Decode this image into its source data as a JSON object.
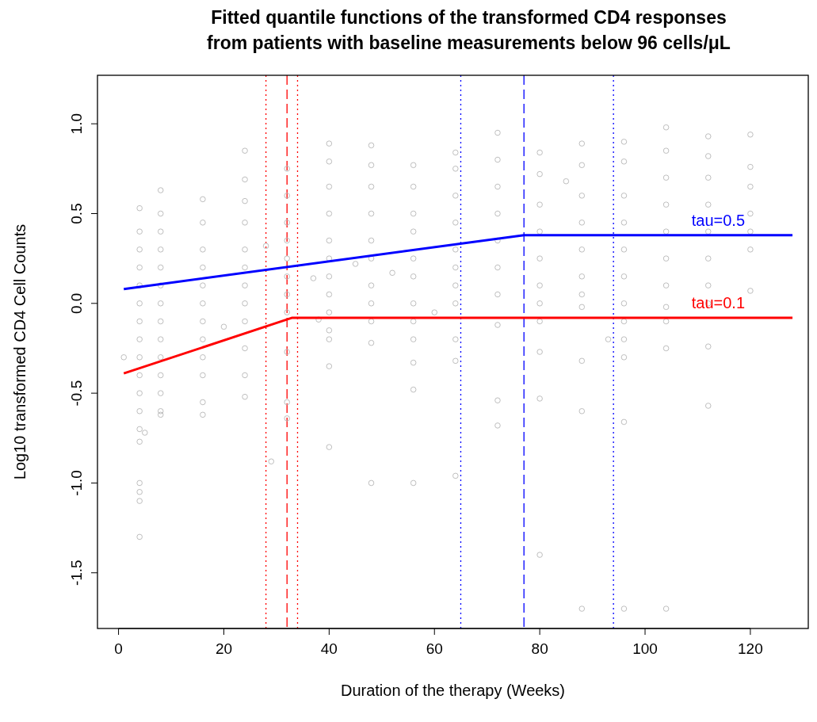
{
  "chart_data": {
    "type": "scatter",
    "title": "Fitted quantile functions of the transformed CD4 responses\nfrom patients with baseline measurements below 96 cells/μL",
    "xlabel": "Duration of the therapy (Weeks)",
    "ylabel": "Log10 transformed CD4 Cell Counts",
    "xlim": [
      -4,
      131
    ],
    "ylim": [
      -1.81,
      1.27
    ],
    "xticks": [
      0,
      20,
      40,
      60,
      80,
      100,
      120
    ],
    "yticks": [
      {
        "value": -1.5,
        "label": "-1.5"
      },
      {
        "value": -1,
        "label": "-1.0"
      },
      {
        "value": -0.5,
        "label": "-0.5"
      },
      {
        "value": 0,
        "label": "0.0"
      },
      {
        "value": 0.5,
        "label": "0.5"
      },
      {
        "value": 1,
        "label": "1.0"
      }
    ],
    "grid": false,
    "series": [
      {
        "marker": "circle",
        "color": "#bebebe",
        "x": [
          1,
          4,
          4,
          4,
          4,
          4,
          4,
          4,
          4,
          4,
          4,
          4,
          4,
          4,
          4,
          4,
          4,
          4,
          4,
          5,
          8,
          8,
          8,
          8,
          8,
          8,
          8,
          8,
          8,
          8,
          8,
          8,
          8,
          8,
          16,
          16,
          16,
          16,
          16,
          16,
          16,
          16,
          16,
          16,
          16,
          16,
          20,
          24,
          24,
          24,
          24,
          24,
          24,
          24,
          24,
          24,
          24,
          24,
          24,
          28,
          29,
          32,
          32,
          32,
          32,
          32,
          32,
          32,
          32,
          32,
          32,
          32,
          37,
          38,
          40,
          40,
          40,
          40,
          40,
          40,
          40,
          40,
          40,
          40,
          40,
          40,
          40,
          45,
          48,
          48,
          48,
          48,
          48,
          48,
          48,
          48,
          48,
          48,
          48,
          52,
          56,
          56,
          56,
          56,
          56,
          56,
          56,
          56,
          56,
          56,
          56,
          56,
          60,
          64,
          64,
          64,
          64,
          64,
          64,
          64,
          64,
          64,
          64,
          64,
          72,
          72,
          72,
          72,
          72,
          72,
          72,
          72,
          72,
          72,
          80,
          80,
          80,
          80,
          80,
          80,
          80,
          80,
          80,
          80,
          80,
          85,
          88,
          88,
          88,
          88,
          88,
          88,
          88,
          88,
          88,
          88,
          88,
          93,
          96,
          96,
          96,
          96,
          96,
          96,
          96,
          96,
          96,
          96,
          96,
          96,
          104,
          104,
          104,
          104,
          104,
          104,
          104,
          104,
          104,
          104,
          104,
          112,
          112,
          112,
          112,
          112,
          112,
          112,
          112,
          112,
          112,
          120,
          120,
          120,
          120,
          120,
          120,
          120
        ],
        "values": [
          -0.3,
          0.53,
          0.4,
          0.3,
          0.2,
          0.1,
          0,
          -0.1,
          -0.2,
          -0.3,
          -0.4,
          -0.5,
          -0.6,
          -0.7,
          -0.77,
          -1,
          -1.05,
          -1.1,
          -1.3,
          -0.72,
          0.63,
          0.5,
          0.4,
          0.3,
          0.2,
          0.1,
          0,
          -0.1,
          -0.2,
          -0.3,
          -0.4,
          -0.5,
          -0.6,
          -0.62,
          0.58,
          0.45,
          0.3,
          0.2,
          0.1,
          0,
          -0.1,
          -0.2,
          -0.3,
          -0.4,
          -0.55,
          -0.62,
          -0.13,
          0.85,
          0.69,
          0.57,
          0.45,
          0.3,
          0.2,
          0.1,
          0,
          -0.1,
          -0.25,
          -0.4,
          -0.52,
          0.32,
          -0.88,
          0.75,
          0.6,
          0.45,
          0.35,
          0.25,
          0.15,
          0.05,
          -0.05,
          -0.27,
          -0.55,
          -0.64,
          0.14,
          -0.09,
          0.89,
          0.79,
          0.65,
          0.5,
          0.35,
          0.25,
          0.15,
          0.05,
          -0.05,
          -0.15,
          -0.2,
          -0.35,
          -0.8,
          0.22,
          0.88,
          0.77,
          0.65,
          0.5,
          0.35,
          0.25,
          0.1,
          0,
          -0.1,
          -0.22,
          -1,
          0.17,
          0.77,
          0.65,
          0.5,
          0.4,
          0.25,
          0.15,
          0,
          -0.1,
          -0.2,
          -0.33,
          -0.48,
          -1,
          -0.05,
          0.84,
          0.75,
          0.6,
          0.45,
          0.3,
          0.2,
          0.1,
          0,
          -0.2,
          -0.32,
          -0.96,
          0.95,
          0.8,
          0.65,
          0.5,
          0.35,
          0.2,
          0.05,
          -0.12,
          -0.54,
          -0.68,
          0.84,
          0.72,
          0.55,
          0.4,
          0.25,
          0.1,
          0,
          -0.1,
          -0.27,
          -0.53,
          -1.4,
          0.68,
          0.89,
          0.77,
          0.6,
          0.45,
          0.3,
          0.15,
          0.05,
          -0.02,
          -0.32,
          -0.6,
          -1.7,
          -0.2,
          0.9,
          0.79,
          0.6,
          0.45,
          0.3,
          0.15,
          0,
          -0.1,
          -0.2,
          -0.3,
          -0.66,
          -1.7,
          0.98,
          0.85,
          0.7,
          0.55,
          0.4,
          0.25,
          0.1,
          -0.02,
          -0.1,
          -0.25,
          -1.7,
          0.93,
          0.82,
          0.7,
          0.55,
          0.4,
          0.25,
          0.1,
          0,
          -0.24,
          -0.57,
          0.94,
          0.76,
          0.65,
          0.5,
          0.4,
          0.3,
          0.07
        ]
      },
      {
        "type": "line",
        "marker": "none",
        "name": "tau=0.5",
        "color": "#0000ff",
        "x": [
          1,
          77,
          128
        ],
        "values": [
          0.08,
          0.38,
          0.38
        ]
      },
      {
        "type": "line",
        "marker": "none",
        "name": "tau=0.1",
        "color": "#ff0000",
        "x": [
          1,
          33,
          128
        ],
        "values": [
          -0.39,
          -0.08,
          -0.08
        ]
      }
    ],
    "ref_lines": [
      {
        "axis": "x",
        "value": 28,
        "color": "#ff0000",
        "line_style": "dotted"
      },
      {
        "axis": "x",
        "value": 32,
        "color": "#ff0000",
        "line_style": "dashed"
      },
      {
        "axis": "x",
        "value": 34,
        "color": "#ff0000",
        "line_style": "dotted"
      },
      {
        "axis": "x",
        "value": 65,
        "color": "#0000ff",
        "line_style": "dotted"
      },
      {
        "axis": "x",
        "value": 77,
        "color": "#0000ff",
        "line_style": "dashed"
      },
      {
        "axis": "x",
        "value": 94,
        "color": "#0000ff",
        "line_style": "dotted"
      }
    ]
  }
}
